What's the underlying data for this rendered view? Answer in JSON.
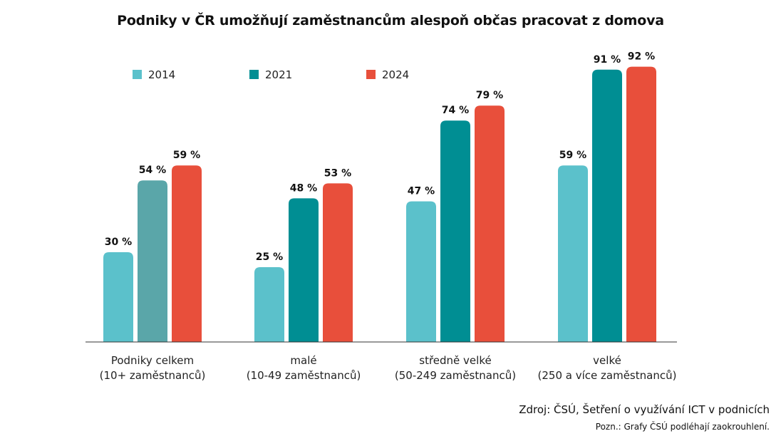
{
  "title": "Podniky v ČR umožňují zaměstnancům alespoň občas pracovat z domova",
  "source": "Zdroj: ČSÚ, Šetření o využívání ICT v podnicích",
  "note": "Pozn.: Grafy ČSÚ podléhají zaokrouhlení.",
  "chart_data": {
    "type": "bar",
    "title": "Podniky v ČR umožňují zaměstnancům alespoň občas pracovat z domova",
    "xlabel": "",
    "ylabel": "",
    "ylim": [
      0,
      100
    ],
    "grid": false,
    "legend_position": "top-left",
    "value_suffix": " %",
    "categories": [
      [
        "Podniky celkem",
        "(10+ zaměstnanců)"
      ],
      [
        "malé",
        "(10-49 zaměstnanců)"
      ],
      [
        "středně velké",
        "(50-249 zaměstnanců)"
      ],
      [
        "velké",
        "(250 a více zaměstnanců)"
      ]
    ],
    "series": [
      {
        "name": "2014",
        "color": "#5bc1cb",
        "values": [
          30,
          25,
          47,
          59
        ]
      },
      {
        "name": "2021",
        "color": "#008e93",
        "values": [
          54,
          48,
          74,
          91
        ]
      },
      {
        "name": "2024",
        "color": "#e84f3b",
        "values": [
          59,
          53,
          79,
          92
        ]
      }
    ],
    "special_colors": [
      {
        "series": 1,
        "category": 0,
        "color": "#5aa6a9"
      }
    ]
  }
}
